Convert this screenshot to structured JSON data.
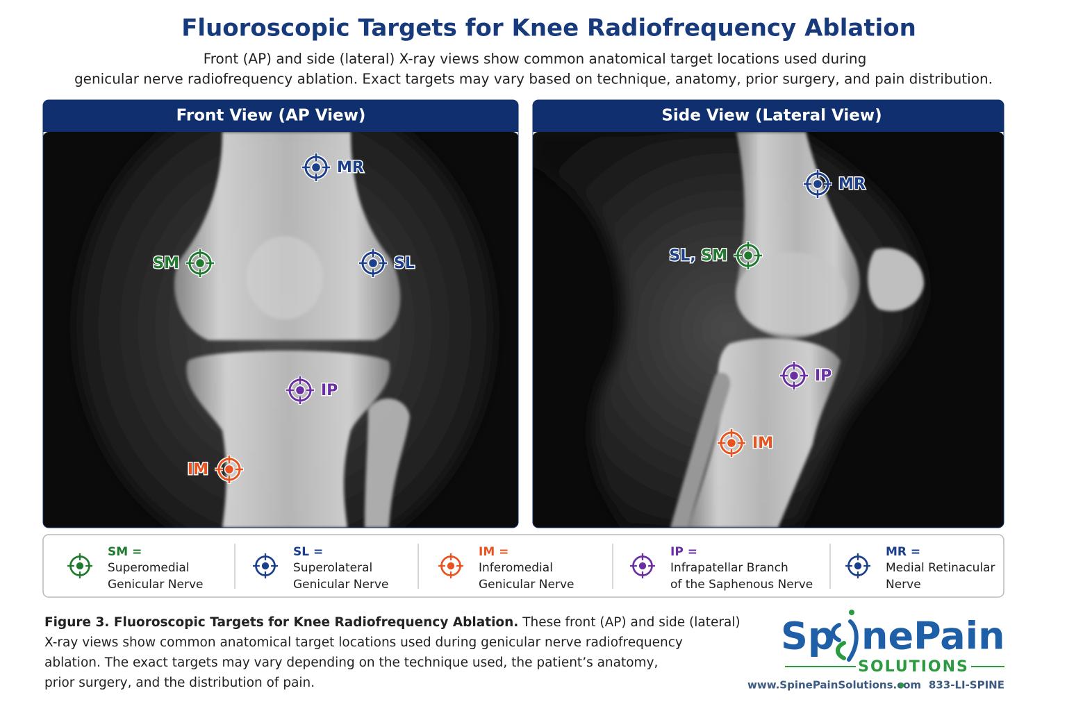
{
  "header": {
    "title": "Fluoroscopic Targets for Knee Radiofrequency Ablation",
    "subtitle_lines": [
      "Front (AP) and side (lateral) X-ray views show common anatomical target locations used during",
      "genicular nerve radiofrequency ablation. Exact targets may vary based on technique, anatomy, prior surgery, and pain distribution."
    ]
  },
  "panels": [
    {
      "title": "Front View (AP View)",
      "targets": [
        {
          "label": [
            {
              "text": "MR",
              "color": "#1c3f8c"
            }
          ],
          "color": "#1c3f8c"
        },
        {
          "label": [
            {
              "text": "SM",
              "color": "#1f7a2e"
            }
          ],
          "color": "#1f7a2e"
        },
        {
          "label": [
            {
              "text": "SL",
              "color": "#1c3f8c"
            }
          ],
          "color": "#1c3f8c"
        },
        {
          "label": [
            {
              "text": "IP",
              "color": "#6a30a3"
            }
          ],
          "color": "#6a30a3"
        },
        {
          "label": [
            {
              "text": "IM",
              "color": "#e8531f"
            }
          ],
          "color": "#e8531f"
        }
      ]
    },
    {
      "title": "Side View (Lateral View)",
      "targets": [
        {
          "label": [
            {
              "text": "MR",
              "color": "#1c3f8c"
            }
          ],
          "color": "#1c3f8c"
        },
        {
          "label": [
            {
              "text": "SL, ",
              "color": "#1c3f8c"
            },
            {
              "text": "SM",
              "color": "#1f7a2e"
            }
          ],
          "color": "#1f7a2e"
        },
        {
          "label": [
            {
              "text": "IP",
              "color": "#6a30a3"
            }
          ],
          "color": "#6a30a3"
        },
        {
          "label": [
            {
              "text": "IM",
              "color": "#e8531f"
            }
          ],
          "color": "#e8531f"
        }
      ]
    }
  ],
  "legend": [
    {
      "term": "SM =",
      "lines": [
        "Superomedial",
        "Genicular Nerve"
      ],
      "color": "#1f7a2e"
    },
    {
      "term": "SL =",
      "lines": [
        "Superolateral",
        "Genicular Nerve"
      ],
      "color": "#1c3f8c"
    },
    {
      "term": "IM =",
      "lines": [
        "Inferomedial",
        "Genicular Nerve"
      ],
      "color": "#e8531f"
    },
    {
      "term": "IP =",
      "lines": [
        "Infrapatellar Branch",
        "of the Saphenous Nerve"
      ],
      "color": "#6a30a3"
    },
    {
      "term": "MR =",
      "lines": [
        "Medial Retinacular",
        "Nerve"
      ],
      "color": "#1c3f8c"
    }
  ],
  "caption": {
    "lead": "Figure 3. Fluoroscopic Targets for Knee Radiofrequency Ablation.",
    "lines": [
      " These front (AP) and side (lateral)",
      "X-ray views show common anatomical target locations used during genicular nerve radiofrequency",
      "ablation. The exact targets may vary depending on the technique used, the patient’s anatomy,",
      "prior surgery, and the distribution of pain."
    ]
  },
  "logo": {
    "name_start": "Sp",
    "name_end": "nePain",
    "tagline": "SOLUTIONS",
    "website": "www.SpinePainSolutions.com",
    "phone": "833-LI-SPINE"
  }
}
